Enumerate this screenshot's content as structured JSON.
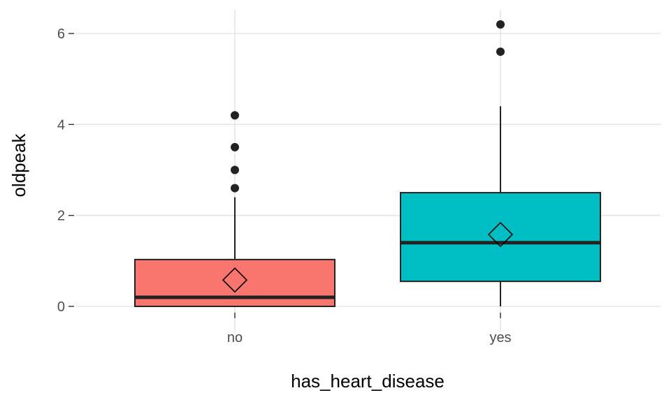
{
  "chart_data": {
    "type": "boxplot",
    "xlabel": "has_heart_disease",
    "ylabel": "oldpeak",
    "ylim": [
      -0.6,
      6.5
    ],
    "yticks": [
      0,
      2,
      4,
      6
    ],
    "grid": true,
    "categories": [
      "no",
      "yes"
    ],
    "boxes": [
      {
        "category": "no",
        "color": "#F8766D",
        "q1": 0.0,
        "median": 0.2,
        "q3": 1.03,
        "whisker_low": 0.0,
        "whisker_high": 2.4,
        "mean": 0.58,
        "outliers": [
          2.6,
          3.0,
          3.5,
          4.2
        ]
      },
      {
        "category": "yes",
        "color": "#00BFC4",
        "q1": 0.55,
        "median": 1.4,
        "q3": 2.5,
        "whisker_low": 0.0,
        "whisker_high": 4.4,
        "mean": 1.58,
        "outliers": [
          5.6,
          6.2
        ]
      }
    ]
  }
}
